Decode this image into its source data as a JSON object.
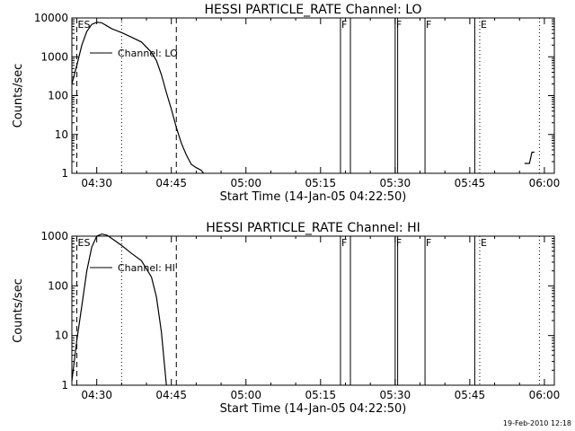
{
  "footer": {
    "stamp": "19-Feb-2010 12:18"
  },
  "chart_data": [
    {
      "type": "line",
      "title": "HESSI PARTICLE_RATE Channel: LO",
      "xlabel": "Start Time (14-Jan-05 04:22:50)",
      "ylabel": "Counts/sec",
      "xlim": [
        "04:25",
        "06:02"
      ],
      "ylim": [
        1,
        10000
      ],
      "yscale": "log",
      "xticks": [
        "04:30",
        "04:45",
        "05:00",
        "05:15",
        "05:30",
        "05:45",
        "06:00"
      ],
      "yticks": [
        "1",
        "10",
        "100",
        "1000",
        "10000"
      ],
      "grid": false,
      "legend": "upper-left",
      "series": [
        {
          "name": "Channel: LO",
          "segments": [
            [
              [
                "04:25:00",
                200
              ],
              [
                "04:26:00",
                600
              ],
              [
                "04:27:00",
                2000
              ],
              [
                "04:28:00",
                4500
              ],
              [
                "04:29:00",
                6800
              ],
              [
                "04:30:00",
                7800
              ],
              [
                "04:31:00",
                7500
              ],
              [
                "04:32:00",
                6300
              ],
              [
                "04:33:00",
                5300
              ],
              [
                "04:35:00",
                4200
              ],
              [
                "04:37:00",
                3200
              ],
              [
                "04:39:00",
                2400
              ],
              [
                "04:41:00",
                1300
              ],
              [
                "04:42:00",
                800
              ],
              [
                "04:43:00",
                350
              ],
              [
                "04:44:00",
                120
              ],
              [
                "04:45:00",
                45
              ],
              [
                "04:46:00",
                15
              ],
              [
                "04:47:00",
                6
              ],
              [
                "04:48:00",
                3
              ],
              [
                "04:49:00",
                1.7
              ],
              [
                "04:50:00",
                1.4
              ],
              [
                "04:51:00",
                1.2
              ],
              [
                "04:51:30",
                1.0
              ]
            ],
            [
              [
                "05:56:00",
                1.8
              ],
              [
                "05:57:00",
                1.8
              ],
              [
                "05:57:30",
                3.5
              ],
              [
                "05:58:00",
                3.5
              ]
            ]
          ]
        }
      ],
      "vlines": [
        {
          "x": "04:26:00",
          "style": "dashed",
          "label": "ES"
        },
        {
          "x": "04:35:00",
          "style": "dotted",
          "label": ""
        },
        {
          "x": "04:46:00",
          "style": "dashed",
          "label": ""
        },
        {
          "x": "05:19:00",
          "style": "solid",
          "label": "F"
        },
        {
          "x": "05:21:00",
          "style": "solid",
          "label": ""
        },
        {
          "x": "05:30:00",
          "style": "solid",
          "label": "F"
        },
        {
          "x": "05:30:30",
          "style": "solid",
          "label": ""
        },
        {
          "x": "05:36:00",
          "style": "solid",
          "label": "F"
        },
        {
          "x": "05:46:00",
          "style": "solid",
          "label": ""
        },
        {
          "x": "05:47:00",
          "style": "dotted",
          "label": "E"
        },
        {
          "x": "05:59:00",
          "style": "dotted",
          "label": ""
        }
      ]
    },
    {
      "type": "line",
      "title": "HESSI PARTICLE_RATE Channel: HI",
      "xlabel": "Start Time (14-Jan-05 04:22:50)",
      "ylabel": "Counts/sec",
      "xlim": [
        "04:25",
        "06:02"
      ],
      "ylim": [
        1,
        1000
      ],
      "yscale": "log",
      "xticks": [
        "04:30",
        "04:45",
        "05:00",
        "05:15",
        "05:30",
        "05:45",
        "06:00"
      ],
      "yticks": [
        "1",
        "10",
        "100",
        "1000"
      ],
      "grid": false,
      "legend": "upper-left",
      "series": [
        {
          "name": "Channel: HI",
          "segments": [
            [
              [
                "04:25:00",
                1.2
              ],
              [
                "04:26:00",
                8
              ],
              [
                "04:27:00",
                40
              ],
              [
                "04:28:00",
                200
              ],
              [
                "04:29:00",
                600
              ],
              [
                "04:30:00",
                1000
              ],
              [
                "04:31:00",
                1100
              ],
              [
                "04:32:00",
                1050
              ],
              [
                "04:33:00",
                900
              ],
              [
                "04:35:00",
                650
              ],
              [
                "04:37:00",
                450
              ],
              [
                "04:39:00",
                320
              ],
              [
                "04:40:00",
                220
              ],
              [
                "04:41:00",
                150
              ],
              [
                "04:42:00",
                60
              ],
              [
                "04:43:00",
                12
              ],
              [
                "04:44:00",
                1.0
              ]
            ]
          ]
        }
      ],
      "vlines": [
        {
          "x": "04:26:00",
          "style": "dashed",
          "label": "ES"
        },
        {
          "x": "04:35:00",
          "style": "dotted",
          "label": ""
        },
        {
          "x": "04:46:00",
          "style": "dashed",
          "label": ""
        },
        {
          "x": "05:19:00",
          "style": "solid",
          "label": "F"
        },
        {
          "x": "05:21:00",
          "style": "solid",
          "label": ""
        },
        {
          "x": "05:30:00",
          "style": "solid",
          "label": "F"
        },
        {
          "x": "05:30:30",
          "style": "solid",
          "label": ""
        },
        {
          "x": "05:36:00",
          "style": "solid",
          "label": "F"
        },
        {
          "x": "05:46:00",
          "style": "solid",
          "label": ""
        },
        {
          "x": "05:47:00",
          "style": "dotted",
          "label": "E"
        },
        {
          "x": "05:59:00",
          "style": "dotted",
          "label": ""
        }
      ]
    }
  ]
}
